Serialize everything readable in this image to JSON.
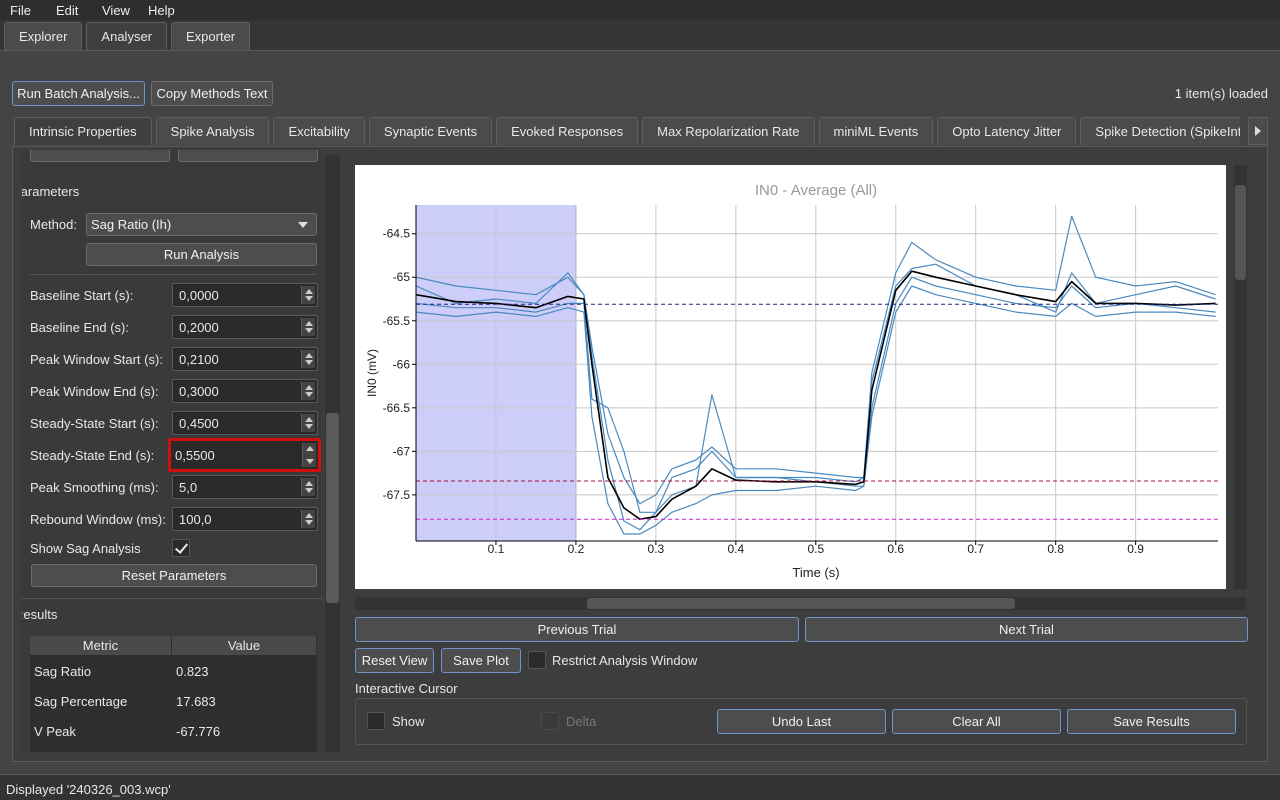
{
  "menu": [
    "File",
    "Edit",
    "View",
    "Help"
  ],
  "top_tabs": {
    "items": [
      "Explorer",
      "Analyser",
      "Exporter"
    ],
    "selected": 1
  },
  "toolbar": {
    "buttons": [
      "Run Batch Analysis...",
      "Copy Methods Text"
    ],
    "status": "1 item(s) loaded"
  },
  "analysis_tabs": {
    "items": [
      "Intrinsic Properties",
      "Spike Analysis",
      "Excitability",
      "Synaptic Events",
      "Evoked Responses",
      "Max Repolarization Rate",
      "miniML Events",
      "Opto Latency Jitter",
      "Spike Detection (SpikeInt"
    ],
    "selected": 0
  },
  "parameters": {
    "heading": "Parameters",
    "method_label": "Method:",
    "method_value": "Sag Ratio (Ih)",
    "run_button": "Run Analysis",
    "fields": [
      {
        "label": "Baseline Start (s):",
        "value": "0,0000"
      },
      {
        "label": "Baseline End (s):",
        "value": "0,2000"
      },
      {
        "label": "Peak Window Start (s):",
        "value": "0,2100"
      },
      {
        "label": "Peak Window End (s):",
        "value": "0,3000"
      },
      {
        "label": "Steady-State Start (s):",
        "value": "0,4500"
      },
      {
        "label": "Steady-State End (s):",
        "value": "0,5500"
      },
      {
        "label": "Peak Smoothing (ms):",
        "value": "5,0"
      },
      {
        "label": "Rebound Window (ms):",
        "value": "100,0"
      }
    ],
    "highlighted_field": 5,
    "show_sag": {
      "label": "Show Sag Analysis",
      "checked": true
    },
    "reset_button": "Reset Parameters"
  },
  "results": {
    "heading": "Results",
    "columns": [
      "Metric",
      "Value"
    ],
    "rows": [
      [
        "Sag Ratio",
        "0.823"
      ],
      [
        "Sag Percentage",
        "17.683"
      ],
      [
        "V Peak",
        "-67.776"
      ]
    ]
  },
  "chart_data": {
    "type": "line",
    "title": "IN0 - Average (All)",
    "x_label": "Time (s)",
    "y_label": "IN0 (mV)",
    "x": [
      0,
      0.05,
      0.1,
      0.15,
      0.19,
      0.21,
      0.22,
      0.24,
      0.26,
      0.28,
      0.3,
      0.32,
      0.35,
      0.37,
      0.4,
      0.45,
      0.5,
      0.55,
      0.56,
      0.57,
      0.6,
      0.62,
      0.65,
      0.7,
      0.75,
      0.8,
      0.82,
      0.85,
      0.9,
      0.95,
      1.0
    ],
    "series": [
      {
        "color": "#4a8ac0",
        "values": [
          -65.0,
          -65.1,
          -65.15,
          -65.2,
          -65.0,
          -65.2,
          -65.8,
          -66.8,
          -67.3,
          -67.6,
          -67.5,
          -67.2,
          -67.1,
          -66.95,
          -67.2,
          -67.2,
          -67.25,
          -67.3,
          -67.3,
          -66.1,
          -64.95,
          -64.6,
          -64.8,
          -65.0,
          -65.1,
          -65.15,
          -64.3,
          -65.0,
          -65.1,
          -65.05,
          -65.2
        ]
      },
      {
        "color": "#4a8ac0",
        "values": [
          -65.3,
          -65.35,
          -65.35,
          -65.4,
          -65.3,
          -65.3,
          -66.4,
          -66.5,
          -67.0,
          -67.7,
          -67.7,
          -67.5,
          -67.4,
          -66.35,
          -67.3,
          -67.3,
          -67.35,
          -67.4,
          -67.4,
          -66.5,
          -65.3,
          -65.0,
          -65.1,
          -65.2,
          -65.3,
          -65.35,
          -65.1,
          -65.35,
          -65.3,
          -65.35,
          -65.4
        ]
      },
      {
        "color": "#4a8ac0",
        "values": [
          -65.4,
          -65.45,
          -65.4,
          -65.45,
          -65.35,
          -65.4,
          -66.6,
          -67.6,
          -67.95,
          -67.95,
          -67.85,
          -67.7,
          -67.6,
          -67.5,
          -67.45,
          -67.45,
          -67.4,
          -67.45,
          -67.4,
          -66.6,
          -65.4,
          -65.1,
          -65.2,
          -65.3,
          -65.4,
          -65.45,
          -65.3,
          -65.45,
          -65.4,
          -65.4,
          -65.45
        ]
      },
      {
        "color": "#4a8ac0",
        "values": [
          -65.1,
          -65.3,
          -65.25,
          -65.3,
          -64.95,
          -65.2,
          -65.9,
          -67.1,
          -67.8,
          -67.9,
          -67.7,
          -67.3,
          -67.2,
          -67.0,
          -67.3,
          -67.3,
          -67.3,
          -67.35,
          -67.3,
          -66.2,
          -65.1,
          -64.9,
          -64.85,
          -65.1,
          -65.2,
          -65.4,
          -64.95,
          -65.3,
          -65.2,
          -65.1,
          -65.25
        ]
      },
      {
        "color": "#000000",
        "values": [
          -65.2,
          -65.28,
          -65.3,
          -65.35,
          -65.22,
          -65.25,
          -66.0,
          -67.3,
          -67.65,
          -67.78,
          -67.75,
          -67.55,
          -67.4,
          -67.2,
          -67.33,
          -67.35,
          -67.35,
          -67.38,
          -67.35,
          -66.3,
          -65.15,
          -64.93,
          -65.0,
          -65.1,
          -65.2,
          -65.28,
          -65.05,
          -65.3,
          -65.3,
          -65.32,
          -65.3
        ]
      }
    ],
    "shaded_region": {
      "x": [
        0,
        0.2
      ],
      "color": "#c8c8f8"
    },
    "hlines": [
      {
        "value": -65.31,
        "color": "#1a237e"
      },
      {
        "value": -67.34,
        "color": "#b0103a"
      },
      {
        "value": -67.78,
        "color": "#d020d0"
      }
    ],
    "xlim": [
      0,
      1.003
    ],
    "ylim": [
      -68.03,
      -64.17
    ],
    "xticks": [
      0.1,
      0.2,
      0.3,
      0.4,
      0.5,
      0.6,
      0.7,
      0.8,
      0.9
    ],
    "yticks": [
      -64.5,
      -65,
      -65.5,
      -66,
      -66.5,
      -67,
      -67.5
    ],
    "grid": true
  },
  "plot_controls": {
    "previous": "Previous Trial",
    "next": "Next Trial",
    "reset_view": "Reset View",
    "save_plot": "Save Plot",
    "restrict": {
      "label": "Restrict Analysis Window",
      "checked": false
    },
    "cursor_heading": "Interactive Cursor",
    "show": {
      "label": "Show",
      "checked": false
    },
    "delta": {
      "label": "Delta",
      "checked": false
    },
    "buttons": [
      "Undo Last",
      "Clear All",
      "Save Results"
    ]
  },
  "status_bar": "Displayed '240326_003.wcp'"
}
